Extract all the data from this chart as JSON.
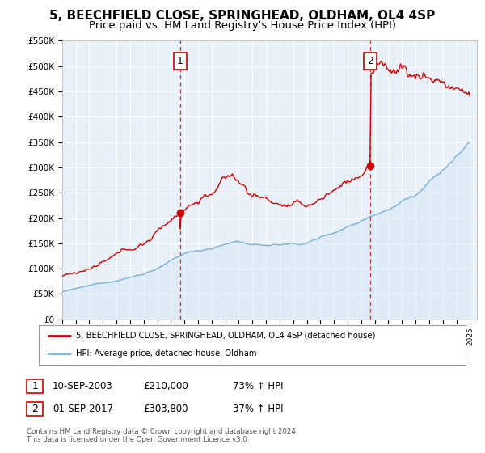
{
  "title": "5, BEECHFIELD CLOSE, SPRINGHEAD, OLDHAM, OL4 4SP",
  "subtitle": "Price paid vs. HM Land Registry's House Price Index (HPI)",
  "ylabel_ticks": [
    "£0",
    "£50K",
    "£100K",
    "£150K",
    "£200K",
    "£250K",
    "£300K",
    "£350K",
    "£400K",
    "£450K",
    "£500K",
    "£550K"
  ],
  "ytick_vals": [
    0,
    50000,
    100000,
    150000,
    200000,
    250000,
    300000,
    350000,
    400000,
    450000,
    500000,
    550000
  ],
  "ylim": [
    0,
    550000
  ],
  "xlim_start": 1995.0,
  "xlim_end": 2025.5,
  "sale1_year": 2003.69,
  "sale1_price": 210000,
  "sale1_label": "10-SEP-2003",
  "sale1_pct": "73% ↑ HPI",
  "sale2_year": 2017.67,
  "sale2_price": 303800,
  "sale2_label": "01-SEP-2017",
  "sale2_pct": "37% ↑ HPI",
  "red_line_color": "#cc0000",
  "blue_line_color": "#7bafd4",
  "blue_fill_color": "#d6e8f5",
  "vline_color": "#cc0000",
  "marker_color": "#cc0000",
  "box_edge_color": "#cc0000",
  "legend_label_red": "5, BEECHFIELD CLOSE, SPRINGHEAD, OLDHAM, OL4 4SP (detached house)",
  "legend_label_blue": "HPI: Average price, detached house, Oldham",
  "footnote1": "Contains HM Land Registry data © Crown copyright and database right 2024.",
  "footnote2": "This data is licensed under the Open Government Licence v3.0.",
  "bg_color": "#ffffff",
  "plot_bg_color": "#e8f0f8",
  "grid_color": "#ffffff",
  "title_fontsize": 11,
  "subtitle_fontsize": 9.5
}
